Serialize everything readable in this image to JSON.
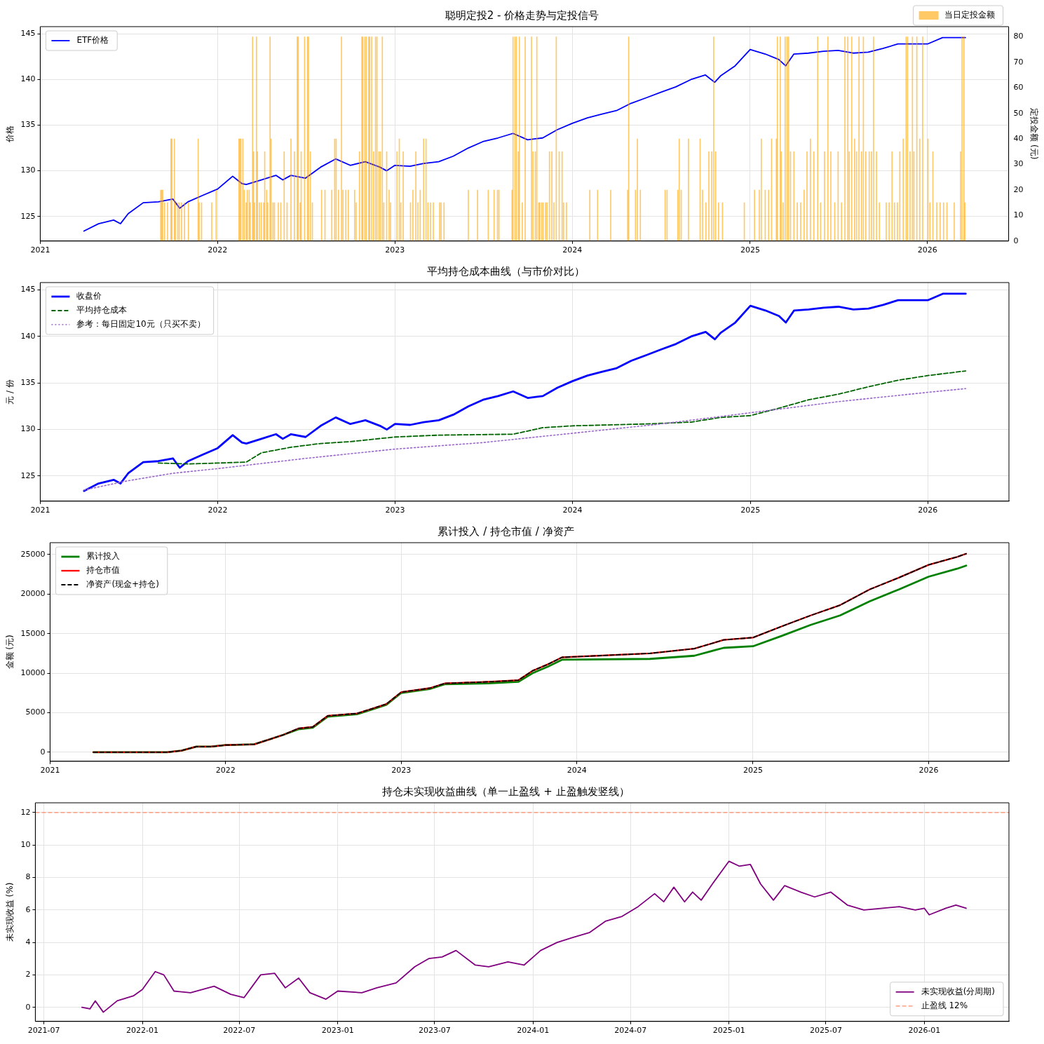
{
  "chart_data": [
    {
      "type": "line",
      "title": "聪明定投2 - 价格走势与定投信号",
      "ylabel": "价格",
      "y2label": "定投金额 (元)",
      "xlim": [
        "2021-01-01",
        "2026-06-17"
      ],
      "xticks": [
        "2021",
        "2022",
        "2023",
        "2024",
        "2025",
        "2026"
      ],
      "ylim": [
        122.3,
        145.8
      ],
      "yticks": [
        125,
        130,
        135,
        140,
        145
      ],
      "y2lim": [
        0,
        84
      ],
      "y2ticks": [
        0,
        10,
        20,
        30,
        40,
        50,
        60,
        70,
        80
      ],
      "grid": true,
      "legend": "top left",
      "series": [
        {
          "name": "当日定投金额",
          "type": "bar",
          "axis": "y2",
          "color": "#ffa500",
          "x": [
            "2021-09-06",
            "2021-09-08",
            "2021-09-10",
            "2021-09-14",
            "2021-09-20",
            "2021-09-27",
            "2021-09-29",
            "2021-10-04",
            "2021-10-06",
            "2021-10-11",
            "2021-10-14",
            "2021-10-19",
            "2021-10-25",
            "2021-11-02",
            "2021-11-22",
            "2021-11-24",
            "2021-11-29",
            "2021-12-20",
            "2021-12-29",
            "2022-02-14",
            "2022-02-16",
            "2022-02-18",
            "2022-02-22",
            "2022-02-25",
            "2022-03-01",
            "2022-03-03",
            "2022-03-07",
            "2022-03-09",
            "2022-03-14",
            "2022-03-16",
            "2022-03-18",
            "2022-03-22",
            "2022-03-24",
            "2022-03-28",
            "2022-04-01",
            "2022-04-06",
            "2022-04-08",
            "2022-04-12",
            "2022-04-14",
            "2022-04-19",
            "2022-04-21",
            "2022-04-25",
            "2022-04-28",
            "2022-05-06",
            "2022-05-11",
            "2022-05-18",
            "2022-05-24",
            "2022-06-01",
            "2022-06-08",
            "2022-06-14",
            "2022-06-16",
            "2022-06-20",
            "2022-06-22",
            "2022-06-29",
            "2022-07-05",
            "2022-07-07",
            "2022-07-11",
            "2022-07-15",
            "2022-08-03",
            "2022-08-10",
            "2022-08-24",
            "2022-08-30",
            "2022-09-02",
            "2022-09-07",
            "2022-09-13",
            "2022-09-16",
            "2022-09-22",
            "2022-09-27",
            "2022-10-10",
            "2022-10-13",
            "2022-10-20",
            "2022-10-25",
            "2022-10-27",
            "2022-10-31",
            "2022-11-03",
            "2022-11-08",
            "2022-11-10",
            "2022-11-14",
            "2022-11-18",
            "2022-11-22",
            "2022-11-25",
            "2022-11-29",
            "2022-12-02",
            "2022-12-06",
            "2022-12-09",
            "2022-12-15",
            "2022-12-20",
            "2022-12-23",
            "2023-01-05",
            "2023-01-10",
            "2023-01-13",
            "2023-01-18",
            "2023-02-02",
            "2023-02-07",
            "2023-02-13",
            "2023-02-17",
            "2023-02-22",
            "2023-03-01",
            "2023-03-06",
            "2023-03-10",
            "2023-03-15",
            "2023-03-21",
            "2023-04-03",
            "2023-04-06",
            "2023-04-12",
            "2023-06-01",
            "2023-06-20",
            "2023-07-12",
            "2023-07-24",
            "2023-07-31",
            "2023-08-03",
            "2023-08-30",
            "2023-09-01",
            "2023-09-05",
            "2023-09-08",
            "2023-09-12",
            "2023-09-14",
            "2023-09-20",
            "2023-09-26",
            "2023-10-09",
            "2023-10-12",
            "2023-10-17",
            "2023-10-20",
            "2023-10-24",
            "2023-10-26",
            "2023-10-30",
            "2023-11-02",
            "2023-11-07",
            "2023-11-10",
            "2023-11-15",
            "2023-11-20",
            "2023-11-24",
            "2023-11-29",
            "2023-12-05",
            "2023-12-11",
            "2023-12-14",
            "2023-12-20",
            "2024-02-06",
            "2024-02-22",
            "2024-03-20",
            "2024-04-24",
            "2024-04-26",
            "2024-05-10",
            "2024-05-14",
            "2024-05-20",
            "2024-07-10",
            "2024-07-14",
            "2024-08-05",
            "2024-08-08",
            "2024-08-12",
            "2024-08-27",
            "2024-09-20",
            "2024-09-25",
            "2024-10-02",
            "2024-10-08",
            "2024-10-14",
            "2024-10-18",
            "2024-10-22",
            "2024-10-28",
            "2024-11-05",
            "2024-12-20",
            "2025-01-10",
            "2025-01-20",
            "2025-01-24",
            "2025-02-01",
            "2025-02-08",
            "2025-02-14",
            "2025-02-24",
            "2025-02-26",
            "2025-03-04",
            "2025-03-06",
            "2025-03-10",
            "2025-03-14",
            "2025-03-18",
            "2025-03-21",
            "2025-03-25",
            "2025-04-01",
            "2025-04-08",
            "2025-04-15",
            "2025-04-22",
            "2025-04-28",
            "2025-05-05",
            "2025-05-12",
            "2025-05-20",
            "2025-05-26",
            "2025-06-03",
            "2025-06-10",
            "2025-06-16",
            "2025-06-24",
            "2025-07-01",
            "2025-07-08",
            "2025-07-15",
            "2025-07-21",
            "2025-07-24",
            "2025-07-29",
            "2025-08-04",
            "2025-08-08",
            "2025-08-13",
            "2025-08-18",
            "2025-08-22",
            "2025-08-27",
            "2025-09-03",
            "2025-09-08",
            "2025-09-12",
            "2025-09-18",
            "2025-09-24",
            "2025-10-08",
            "2025-10-14",
            "2025-10-20",
            "2025-10-25",
            "2025-10-31",
            "2025-11-05",
            "2025-11-12",
            "2025-11-18",
            "2025-11-21",
            "2025-11-26",
            "2025-12-01",
            "2025-12-04",
            "2025-12-10",
            "2025-12-16",
            "2025-12-22",
            "2026-01-02",
            "2026-01-06",
            "2026-01-12",
            "2026-01-20",
            "2026-01-27",
            "2026-02-03",
            "2026-02-10",
            "2026-02-25",
            "2026-03-10",
            "2026-03-13",
            "2026-03-17",
            "2026-03-19"
          ],
          "values": [
            20,
            20,
            20,
            15,
            15,
            40,
            40,
            40,
            15,
            15,
            15,
            15,
            15,
            15,
            40,
            15,
            15,
            15,
            20,
            40,
            40,
            40,
            40,
            20,
            15,
            20,
            20,
            15,
            80,
            35,
            15,
            80,
            35,
            15,
            15,
            15,
            35,
            20,
            15,
            80,
            40,
            15,
            15,
            15,
            15,
            35,
            15,
            40,
            35,
            80,
            80,
            15,
            35,
            80,
            80,
            80,
            35,
            15,
            20,
            20,
            20,
            40,
            40,
            20,
            80,
            20,
            20,
            20,
            20,
            15,
            35,
            80,
            80,
            80,
            80,
            80,
            80,
            80,
            35,
            80,
            80,
            35,
            35,
            80,
            15,
            35,
            20,
            15,
            35,
            40,
            15,
            35,
            15,
            20,
            35,
            15,
            20,
            40,
            40,
            15,
            15,
            15,
            15,
            15,
            15,
            20,
            20,
            20,
            20,
            20,
            20,
            20,
            80,
            80,
            80,
            35,
            80,
            15,
            80,
            80,
            35,
            35,
            80,
            15,
            15,
            15,
            15,
            15,
            15,
            35,
            35,
            15,
            80,
            35,
            35,
            15,
            15,
            20,
            20,
            20,
            20,
            80,
            20,
            40,
            20,
            20,
            20,
            20,
            40,
            20,
            40,
            40,
            20,
            15,
            35,
            35,
            80,
            35,
            15,
            15,
            15,
            20,
            20,
            40,
            20,
            20,
            40,
            40,
            80,
            80,
            35,
            15,
            80,
            80,
            80,
            35,
            35,
            15,
            15,
            20,
            35,
            40,
            35,
            80,
            15,
            35,
            80,
            35,
            15,
            35,
            15,
            80,
            80,
            35,
            80,
            40,
            35,
            80,
            35,
            80,
            35,
            35,
            35,
            80,
            35,
            15,
            15,
            15,
            35,
            15,
            15,
            35,
            40,
            80,
            80,
            35,
            80,
            35,
            80,
            40,
            80,
            40,
            15,
            35,
            15,
            15,
            15,
            15,
            15,
            35,
            80,
            80,
            15
          ]
        },
        {
          "name": "ETF价格",
          "color": "#0000ff",
          "x": [
            "2021-04-01",
            "2021-05-01",
            "2021-06-01",
            "2021-06-15",
            "2021-07-01",
            "2021-08-01",
            "2021-09-01",
            "2021-10-01",
            "2021-10-15",
            "2021-11-01",
            "2021-12-01",
            "2022-01-01",
            "2022-02-01",
            "2022-02-20",
            "2022-03-01",
            "2022-04-01",
            "2022-05-01",
            "2022-05-15",
            "2022-06-01",
            "2022-07-01",
            "2022-08-01",
            "2022-09-01",
            "2022-10-01",
            "2022-11-01",
            "2022-12-01",
            "2022-12-15",
            "2023-01-01",
            "2023-02-01",
            "2023-03-01",
            "2023-04-01",
            "2023-05-01",
            "2023-06-01",
            "2023-07-01",
            "2023-08-01",
            "2023-09-01",
            "2023-10-01",
            "2023-11-01",
            "2023-12-01",
            "2024-01-01",
            "2024-02-01",
            "2024-03-01",
            "2024-04-01",
            "2024-05-01",
            "2024-06-01",
            "2024-07-01",
            "2024-08-01",
            "2024-09-01",
            "2024-10-01",
            "2024-10-20",
            "2024-11-01",
            "2024-12-01",
            "2025-01-01",
            "2025-02-01",
            "2025-03-01",
            "2025-03-15",
            "2025-04-01",
            "2025-05-01",
            "2025-06-01",
            "2025-07-01",
            "2025-08-01",
            "2025-09-01",
            "2025-10-01",
            "2025-11-01",
            "2025-12-01",
            "2026-01-01",
            "2026-02-01",
            "2026-03-20"
          ],
          "values": [
            123.4,
            124.2,
            124.6,
            124.2,
            125.3,
            126.5,
            126.6,
            126.9,
            125.9,
            126.6,
            127.3,
            128.0,
            129.4,
            128.6,
            128.5,
            129.0,
            129.5,
            129.0,
            129.5,
            129.2,
            130.4,
            131.3,
            130.6,
            131.0,
            130.4,
            130.0,
            130.6,
            130.5,
            130.8,
            131.0,
            131.6,
            132.5,
            133.2,
            133.6,
            134.1,
            133.4,
            133.6,
            134.5,
            135.2,
            135.8,
            136.2,
            136.6,
            137.4,
            138.0,
            138.6,
            139.2,
            140.0,
            140.5,
            139.7,
            140.4,
            141.5,
            143.3,
            142.8,
            142.2,
            141.5,
            142.8,
            142.9,
            143.1,
            143.2,
            142.9,
            143.0,
            143.4,
            143.9,
            143.9,
            143.9,
            144.6,
            144.6
          ]
        }
      ]
    },
    {
      "type": "line",
      "title": "平均持仓成本曲线（与市价对比）",
      "ylabel": "元 / 份",
      "xlim": [
        "2021-01-01",
        "2026-06-17"
      ],
      "xticks": [
        "2021",
        "2022",
        "2023",
        "2024",
        "2025",
        "2026"
      ],
      "ylim": [
        122.3,
        145.8
      ],
      "yticks": [
        125,
        130,
        135,
        140,
        145
      ],
      "grid": true,
      "legend": "top left",
      "series": [
        {
          "name": "收盘价",
          "color": "#0000ff",
          "line_style": "solid",
          "x": [
            "2021-04-01",
            "2021-05-01",
            "2021-06-01",
            "2021-06-15",
            "2021-07-01",
            "2021-08-01",
            "2021-09-01",
            "2021-10-01",
            "2021-10-15",
            "2021-11-01",
            "2021-12-01",
            "2022-01-01",
            "2022-02-01",
            "2022-02-20",
            "2022-03-01",
            "2022-04-01",
            "2022-05-01",
            "2022-05-15",
            "2022-06-01",
            "2022-07-01",
            "2022-08-01",
            "2022-09-01",
            "2022-10-01",
            "2022-11-01",
            "2022-12-01",
            "2022-12-15",
            "2023-01-01",
            "2023-02-01",
            "2023-03-01",
            "2023-04-01",
            "2023-05-01",
            "2023-06-01",
            "2023-07-01",
            "2023-08-01",
            "2023-09-01",
            "2023-10-01",
            "2023-11-01",
            "2023-12-01",
            "2024-01-01",
            "2024-02-01",
            "2024-03-01",
            "2024-04-01",
            "2024-05-01",
            "2024-06-01",
            "2024-07-01",
            "2024-08-01",
            "2024-09-01",
            "2024-10-01",
            "2024-10-20",
            "2024-11-01",
            "2024-12-01",
            "2025-01-01",
            "2025-02-01",
            "2025-03-01",
            "2025-03-15",
            "2025-04-01",
            "2025-05-01",
            "2025-06-01",
            "2025-07-01",
            "2025-08-01",
            "2025-09-01",
            "2025-10-01",
            "2025-11-01",
            "2025-12-01",
            "2026-01-01",
            "2026-02-01",
            "2026-03-20"
          ],
          "values": [
            123.4,
            124.2,
            124.6,
            124.2,
            125.3,
            126.5,
            126.6,
            126.9,
            125.9,
            126.6,
            127.3,
            128.0,
            129.4,
            128.6,
            128.5,
            129.0,
            129.5,
            129.0,
            129.5,
            129.2,
            130.4,
            131.3,
            130.6,
            131.0,
            130.4,
            130.0,
            130.6,
            130.5,
            130.8,
            131.0,
            131.6,
            132.5,
            133.2,
            133.6,
            134.1,
            133.4,
            133.6,
            134.5,
            135.2,
            135.8,
            136.2,
            136.6,
            137.4,
            138.0,
            138.6,
            139.2,
            140.0,
            140.5,
            139.7,
            140.4,
            141.5,
            143.3,
            142.8,
            142.2,
            141.5,
            142.8,
            142.9,
            143.1,
            143.2,
            142.9,
            143.0,
            143.4,
            143.9,
            143.9,
            143.9,
            144.6,
            144.6
          ]
        },
        {
          "name": "平均持仓成本",
          "color": "#006400",
          "line_style": "dashed",
          "x": [
            "2021-09-01",
            "2021-11-01",
            "2022-01-01",
            "2022-03-01",
            "2022-04-01",
            "2022-06-01",
            "2022-08-01",
            "2022-10-01",
            "2023-01-01",
            "2023-04-01",
            "2023-09-01",
            "2023-11-01",
            "2024-01-01",
            "2024-06-01",
            "2024-09-01",
            "2024-11-01",
            "2025-01-01",
            "2025-03-01",
            "2025-05-01",
            "2025-07-01",
            "2025-09-01",
            "2025-11-01",
            "2026-01-01",
            "2026-03-20"
          ],
          "values": [
            126.4,
            126.3,
            126.4,
            126.5,
            127.5,
            128.1,
            128.5,
            128.7,
            129.2,
            129.4,
            129.5,
            130.2,
            130.4,
            130.6,
            130.8,
            131.3,
            131.5,
            132.3,
            133.2,
            133.8,
            134.6,
            135.3,
            135.8,
            136.3
          ]
        },
        {
          "name": "参考：每日固定10元（只买不卖）",
          "color": "#9966cc",
          "line_style": "dotted",
          "x": [
            "2021-04-01",
            "2021-07-01",
            "2021-10-01",
            "2022-01-01",
            "2022-07-01",
            "2023-01-01",
            "2023-07-01",
            "2024-01-01",
            "2024-07-01",
            "2025-01-01",
            "2025-07-01",
            "2026-01-01",
            "2026-03-20"
          ],
          "values": [
            123.5,
            124.5,
            125.3,
            125.8,
            126.9,
            127.9,
            128.6,
            129.6,
            130.6,
            131.8,
            133.0,
            134.0,
            134.4
          ]
        }
      ]
    },
    {
      "type": "line",
      "title": "累计投入 / 持仓市值 / 净资产",
      "ylabel": "金额 (元)",
      "xlim": [
        "2021-01-01",
        "2026-06-17"
      ],
      "xticks": [
        "2021",
        "2022",
        "2023",
        "2024",
        "2025",
        "2026"
      ],
      "ylim": [
        -1150,
        26500
      ],
      "yticks": [
        0,
        5000,
        10000,
        15000,
        20000,
        25000
      ],
      "grid": true,
      "legend": "top left",
      "series": [
        {
          "name": "累计投入",
          "color": "#008000",
          "line_style": "solid",
          "x": [
            "2021-04-01",
            "2021-09-01",
            "2021-10-01",
            "2021-11-01",
            "2021-12-01",
            "2022-01-01",
            "2022-03-01",
            "2022-04-01",
            "2022-05-01",
            "2022-06-01",
            "2022-07-01",
            "2022-08-01",
            "2022-10-01",
            "2022-11-01",
            "2022-12-01",
            "2023-01-01",
            "2023-03-01",
            "2023-04-01",
            "2023-07-01",
            "2023-09-01",
            "2023-10-01",
            "2023-11-01",
            "2023-12-01",
            "2024-06-01",
            "2024-09-01",
            "2024-11-01",
            "2025-01-01",
            "2025-03-01",
            "2025-05-01",
            "2025-07-01",
            "2025-09-01",
            "2025-11-01",
            "2026-01-01",
            "2026-03-01",
            "2026-03-20"
          ],
          "values": [
            0,
            0,
            200,
            700,
            700,
            900,
            1000,
            1600,
            2200,
            2900,
            3100,
            4500,
            4800,
            5400,
            6000,
            7500,
            8000,
            8600,
            8700,
            8900,
            10000,
            10800,
            11700,
            11800,
            12200,
            13200,
            13400,
            14700,
            16100,
            17300,
            19100,
            20600,
            22200,
            23200,
            23600
          ]
        },
        {
          "name": "持仓市值",
          "color": "#ff0000",
          "line_style": "solid",
          "x": [
            "2021-04-01",
            "2021-09-01",
            "2021-10-01",
            "2021-11-01",
            "2021-12-01",
            "2022-01-01",
            "2022-03-01",
            "2022-04-01",
            "2022-05-01",
            "2022-06-01",
            "2022-07-01",
            "2022-08-01",
            "2022-10-01",
            "2022-11-01",
            "2022-12-01",
            "2023-01-01",
            "2023-03-01",
            "2023-04-01",
            "2023-07-01",
            "2023-09-01",
            "2023-10-01",
            "2023-11-01",
            "2023-12-01",
            "2024-06-01",
            "2024-09-01",
            "2024-11-01",
            "2025-01-01",
            "2025-03-01",
            "2025-05-01",
            "2025-07-01",
            "2025-09-01",
            "2025-11-01",
            "2026-01-01",
            "2026-03-01",
            "2026-03-20"
          ],
          "values": [
            0,
            0,
            200,
            700,
            700,
            900,
            1000,
            1600,
            2200,
            3000,
            3200,
            4600,
            4900,
            5500,
            6100,
            7600,
            8100,
            8700,
            8900,
            9100,
            10300,
            11100,
            12000,
            12500,
            13100,
            14200,
            14500,
            15900,
            17300,
            18600,
            20600,
            22100,
            23700,
            24700,
            25100
          ]
        },
        {
          "name": "净资产(现金+持仓)",
          "color": "#000000",
          "line_style": "dashed",
          "x": [
            "2021-04-01",
            "2021-09-01",
            "2021-10-01",
            "2021-11-01",
            "2021-12-01",
            "2022-01-01",
            "2022-03-01",
            "2022-04-01",
            "2022-05-01",
            "2022-06-01",
            "2022-07-01",
            "2022-08-01",
            "2022-10-01",
            "2022-11-01",
            "2022-12-01",
            "2023-01-01",
            "2023-03-01",
            "2023-04-01",
            "2023-07-01",
            "2023-09-01",
            "2023-10-01",
            "2023-11-01",
            "2023-12-01",
            "2024-06-01",
            "2024-09-01",
            "2024-11-01",
            "2025-01-01",
            "2025-03-01",
            "2025-05-01",
            "2025-07-01",
            "2025-09-01",
            "2025-11-01",
            "2026-01-01",
            "2026-03-01",
            "2026-03-20"
          ],
          "values": [
            0,
            0,
            200,
            700,
            700,
            900,
            1000,
            1600,
            2200,
            3000,
            3200,
            4600,
            4900,
            5500,
            6100,
            7600,
            8100,
            8700,
            8900,
            9100,
            10300,
            11100,
            12000,
            12500,
            13100,
            14200,
            14500,
            15900,
            17300,
            18600,
            20600,
            22100,
            23700,
            24700,
            25100
          ]
        }
      ]
    },
    {
      "type": "line",
      "title": "持仓未实现收益曲线（单一止盈线 + 止盈触发竖线）",
      "ylabel": "未实现收益 (%)",
      "xlim": [
        "2021-06-15",
        "2026-06-08"
      ],
      "xticks": [
        "2021-07",
        "2022-01",
        "2022-07",
        "2023-01",
        "2023-07",
        "2024-01",
        "2024-07",
        "2025-01",
        "2025-07",
        "2026-01"
      ],
      "ylim": [
        -0.87,
        12.6
      ],
      "yticks": [
        0,
        2,
        4,
        6,
        8,
        10,
        12
      ],
      "grid": true,
      "legend": "bottom right",
      "ref_lines": [
        {
          "axis": "y",
          "value": 12,
          "label": "止盈线 12%",
          "color": "#ff8c69",
          "line_style": "dashed"
        }
      ],
      "series": [
        {
          "name": "未实现收益(分周期)",
          "color": "#800080",
          "line_style": "solid",
          "x": [
            "2021-09-10",
            "2021-09-25",
            "2021-10-05",
            "2021-10-20",
            "2021-11-15",
            "2021-12-15",
            "2022-01-01",
            "2022-01-25",
            "2022-02-10",
            "2022-03-01",
            "2022-04-01",
            "2022-05-15",
            "2022-06-15",
            "2022-07-10",
            "2022-08-10",
            "2022-09-05",
            "2022-09-25",
            "2022-10-20",
            "2022-11-10",
            "2022-12-10",
            "2023-01-01",
            "2023-02-15",
            "2023-03-15",
            "2023-04-20",
            "2023-05-25",
            "2023-06-20",
            "2023-07-15",
            "2023-08-10",
            "2023-09-15",
            "2023-10-10",
            "2023-11-15",
            "2023-12-15",
            "2024-01-15",
            "2024-02-15",
            "2024-03-15",
            "2024-04-15",
            "2024-05-15",
            "2024-06-15",
            "2024-07-15",
            "2024-08-15",
            "2024-09-01",
            "2024-09-20",
            "2024-10-10",
            "2024-10-25",
            "2024-11-10",
            "2024-12-01",
            "2025-01-01",
            "2025-01-20",
            "2025-02-10",
            "2025-03-01",
            "2025-03-25",
            "2025-04-15",
            "2025-05-15",
            "2025-06-10",
            "2025-07-10",
            "2025-08-10",
            "2025-09-10",
            "2025-10-15",
            "2025-11-15",
            "2025-12-15",
            "2026-01-01",
            "2026-01-10",
            "2026-02-10",
            "2026-03-01",
            "2026-03-20"
          ],
          "values": [
            0,
            -0.1,
            0.4,
            -0.3,
            0.4,
            0.7,
            1.1,
            2.2,
            2.0,
            1.0,
            0.9,
            1.3,
            0.8,
            0.6,
            2.0,
            2.1,
            1.2,
            1.8,
            0.9,
            0.5,
            1.0,
            0.9,
            1.2,
            1.5,
            2.5,
            3.0,
            3.1,
            3.5,
            2.6,
            2.5,
            2.8,
            2.6,
            3.5,
            4.0,
            4.3,
            4.6,
            5.3,
            5.6,
            6.2,
            7.0,
            6.5,
            7.4,
            6.5,
            7.1,
            6.6,
            7.6,
            9.0,
            8.7,
            8.8,
            7.6,
            6.6,
            7.5,
            7.1,
            6.8,
            7.1,
            6.3,
            6.0,
            6.1,
            6.2,
            6.0,
            6.1,
            5.7,
            6.1,
            6.3,
            6.1
          ]
        }
      ]
    }
  ]
}
